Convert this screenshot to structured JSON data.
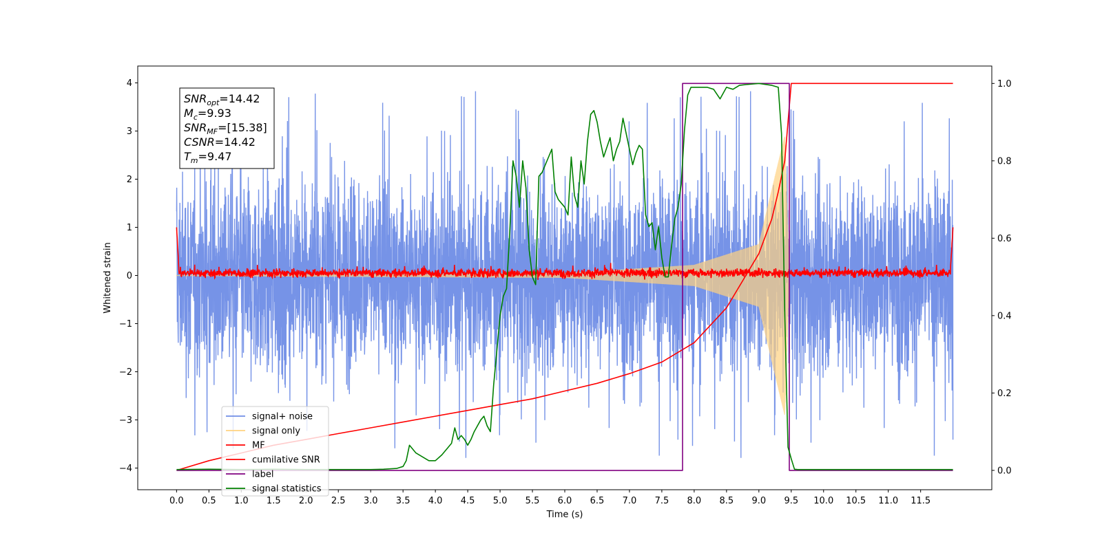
{
  "chart_data": {
    "type": "line",
    "xlabel": "Time (s)",
    "ylabel": "Whitened strain",
    "xlim": [
      -0.6,
      12.6
    ],
    "ylim": [
      -4.45,
      4.35
    ],
    "y2lim": [
      -0.05,
      1.045
    ],
    "xticks": [
      "0.0",
      "0.5",
      "1.0",
      "1.5",
      "2.0",
      "2.5",
      "3.0",
      "3.5",
      "4.0",
      "4.5",
      "5.0",
      "5.5",
      "6.0",
      "6.5",
      "7.0",
      "7.5",
      "8.0",
      "8.5",
      "9.0",
      "9.5",
      "10.0",
      "10.5",
      "11.0",
      "11.5"
    ],
    "yticks": [
      "4",
      "3",
      "2",
      "1",
      "0",
      "−1",
      "−2",
      "−3",
      "−4"
    ],
    "y2ticks": [
      "1.0",
      "0.8",
      "0.6",
      "0.4",
      "0.2",
      "0.0"
    ],
    "legend_position": "lower-left",
    "grid": false,
    "info_box": {
      "lines": [
        {
          "base": "SNR",
          "sub": "opt",
          "value": "=14.42"
        },
        {
          "base": "M",
          "sub": "c",
          "value": "=9.93"
        },
        {
          "base": "SNR",
          "sub": "MF",
          "value": "=[15.38]"
        },
        {
          "base": "CSNR",
          "sub": "",
          "value": "=14.42"
        },
        {
          "base": "T",
          "sub": "m",
          "value": "=9.47"
        }
      ]
    },
    "series": [
      {
        "name": "signal+ noise",
        "color": "#6f8de6",
        "axis": "left",
        "kind": "noise",
        "x_range": [
          0.0,
          12.0
        ],
        "typical_envelope": 2.0,
        "max_abs": 3.95
      },
      {
        "name": "signal only",
        "color": "#ffd280",
        "axis": "left",
        "kind": "chirp",
        "x_range": [
          0.0,
          9.47
        ],
        "amplitude_at": [
          [
            0.0,
            0.01
          ],
          [
            6.0,
            0.05
          ],
          [
            8.0,
            0.22
          ],
          [
            9.0,
            0.65
          ],
          [
            9.4,
            2.9
          ],
          [
            9.47,
            0.0
          ]
        ]
      },
      {
        "name": "MF",
        "color": "#ff0000",
        "axis": "left",
        "kind": "mf",
        "x_range": [
          0.0,
          12.0
        ],
        "baseline": 0.05,
        "edge_value": 1.0
      },
      {
        "name": "cumilative SNR",
        "color": "#ff0000",
        "axis": "right",
        "x": [
          0.0,
          0.5,
          1.0,
          1.5,
          2.0,
          2.5,
          3.0,
          3.5,
          4.0,
          4.5,
          5.0,
          5.5,
          6.0,
          6.5,
          7.0,
          7.5,
          8.0,
          8.5,
          9.0,
          9.2,
          9.3,
          9.4,
          9.45,
          9.5,
          12.0
        ],
        "y": [
          0.0,
          0.025,
          0.045,
          0.065,
          0.08,
          0.095,
          0.11,
          0.125,
          0.14,
          0.155,
          0.17,
          0.185,
          0.205,
          0.225,
          0.25,
          0.28,
          0.33,
          0.42,
          0.56,
          0.65,
          0.72,
          0.8,
          0.9,
          1.0,
          1.0
        ]
      },
      {
        "name": "label",
        "color": "#800080",
        "axis": "right",
        "x": [
          0.0,
          7.82,
          7.82,
          9.47,
          9.47,
          12.0
        ],
        "y": [
          0.0,
          0.0,
          1.0,
          1.0,
          0.0,
          0.0
        ]
      },
      {
        "name": "signal statistics",
        "color": "#008000",
        "axis": "right",
        "x": [
          0.0,
          0.5,
          1.0,
          1.5,
          2.0,
          2.5,
          3.0,
          3.2,
          3.4,
          3.5,
          3.55,
          3.6,
          3.7,
          3.8,
          3.9,
          4.0,
          4.1,
          4.2,
          4.25,
          4.3,
          4.35,
          4.4,
          4.45,
          4.5,
          4.55,
          4.6,
          4.7,
          4.75,
          4.8,
          4.85,
          4.9,
          5.0,
          5.05,
          5.1,
          5.15,
          5.2,
          5.25,
          5.3,
          5.35,
          5.4,
          5.45,
          5.5,
          5.55,
          5.6,
          5.65,
          5.7,
          5.8,
          5.85,
          5.9,
          5.95,
          6.0,
          6.05,
          6.1,
          6.15,
          6.2,
          6.25,
          6.3,
          6.35,
          6.4,
          6.45,
          6.5,
          6.55,
          6.6,
          6.7,
          6.75,
          6.8,
          6.85,
          6.9,
          6.95,
          7.0,
          7.05,
          7.1,
          7.15,
          7.2,
          7.25,
          7.3,
          7.35,
          7.4,
          7.45,
          7.5,
          7.55,
          7.6,
          7.65,
          7.7,
          7.75,
          7.8,
          7.85,
          7.9,
          7.95,
          8.0,
          8.1,
          8.2,
          8.3,
          8.4,
          8.5,
          8.6,
          8.7,
          8.8,
          9.0,
          9.2,
          9.3,
          9.35,
          9.4,
          9.45,
          9.5,
          9.55,
          9.6,
          9.7,
          10.0,
          11.0,
          12.0
        ],
        "y": [
          0.002,
          0.003,
          0.002,
          0.003,
          0.002,
          0.002,
          0.002,
          0.003,
          0.005,
          0.01,
          0.025,
          0.065,
          0.045,
          0.035,
          0.025,
          0.025,
          0.04,
          0.06,
          0.07,
          0.11,
          0.08,
          0.09,
          0.08,
          0.065,
          0.08,
          0.1,
          0.13,
          0.14,
          0.115,
          0.1,
          0.22,
          0.4,
          0.45,
          0.47,
          0.62,
          0.8,
          0.76,
          0.68,
          0.8,
          0.73,
          0.57,
          0.5,
          0.48,
          0.76,
          0.77,
          0.79,
          0.83,
          0.72,
          0.7,
          0.69,
          0.68,
          0.66,
          0.81,
          0.71,
          0.68,
          0.8,
          0.74,
          0.85,
          0.92,
          0.93,
          0.9,
          0.85,
          0.81,
          0.86,
          0.8,
          0.83,
          0.85,
          0.91,
          0.87,
          0.83,
          0.79,
          0.82,
          0.84,
          0.83,
          0.66,
          0.63,
          0.64,
          0.57,
          0.63,
          0.55,
          0.5,
          0.5,
          0.58,
          0.65,
          0.68,
          0.74,
          0.88,
          0.97,
          0.99,
          0.99,
          0.99,
          0.99,
          0.985,
          0.96,
          0.99,
          0.985,
          0.995,
          0.997,
          1.0,
          0.995,
          0.99,
          0.87,
          0.4,
          0.06,
          0.03,
          0.003,
          0.002,
          0.002,
          0.002,
          0.002,
          0.002
        ]
      }
    ]
  }
}
